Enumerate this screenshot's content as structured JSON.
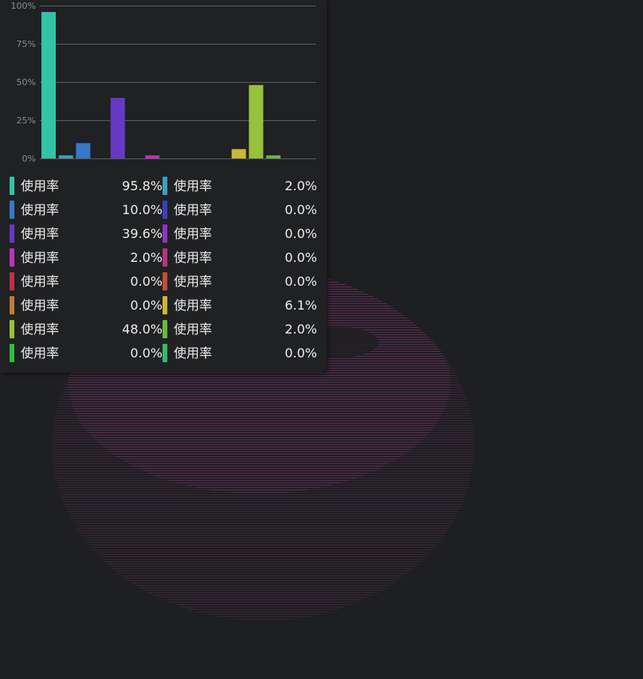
{
  "colors": {
    "background": "#1e1f21",
    "panel": "#202123",
    "grid": "#5a5b5e",
    "text": "#ececec",
    "tick": "#8a8b8d",
    "watermark": "#6a2f5c"
  },
  "chart_data": {
    "type": "bar",
    "ylim": [
      0,
      100
    ],
    "yticks": [
      {
        "value": 0,
        "label": "0%"
      },
      {
        "value": 25,
        "label": "25%"
      },
      {
        "value": 50,
        "label": "50%"
      },
      {
        "value": 75,
        "label": "75%"
      },
      {
        "value": 100,
        "label": "100%"
      }
    ],
    "grid": true,
    "legend_position": "bottom",
    "series": [
      {
        "name": "使用率",
        "value": 95.8,
        "display": "95.8%",
        "color": "#34c3a6"
      },
      {
        "name": "使用率",
        "value": 2.0,
        "display": "2.0%",
        "color": "#3aa0c4"
      },
      {
        "name": "使用率",
        "value": 10.0,
        "display": "10.0%",
        "color": "#3878c8"
      },
      {
        "name": "使用率",
        "value": 0.0,
        "display": "0.0%",
        "color": "#3b3fbf"
      },
      {
        "name": "使用率",
        "value": 39.6,
        "display": "39.6%",
        "color": "#6538c6"
      },
      {
        "name": "使用率",
        "value": 0.0,
        "display": "0.0%",
        "color": "#8d34c2"
      },
      {
        "name": "使用率",
        "value": 2.0,
        "display": "2.0%",
        "color": "#b536b6"
      },
      {
        "name": "使用率",
        "value": 0.0,
        "display": "0.0%",
        "color": "#b9337f"
      },
      {
        "name": "使用率",
        "value": 0.0,
        "display": "0.0%",
        "color": "#c02f45"
      },
      {
        "name": "使用率",
        "value": 0.0,
        "display": "0.0%",
        "color": "#c24f30"
      },
      {
        "name": "使用率",
        "value": 0.0,
        "display": "0.0%",
        "color": "#c07b35"
      },
      {
        "name": "使用率",
        "value": 6.1,
        "display": "6.1%",
        "color": "#c8b936"
      },
      {
        "name": "使用率",
        "value": 48.0,
        "display": "48.0%",
        "color": "#95c23a"
      },
      {
        "name": "使用率",
        "value": 2.0,
        "display": "2.0%",
        "color": "#64bc3a"
      },
      {
        "name": "使用率",
        "value": 0.0,
        "display": "0.0%",
        "color": "#36bb3f"
      },
      {
        "name": "使用率",
        "value": 0.0,
        "display": "0.0%",
        "color": "#34b86e"
      }
    ]
  }
}
